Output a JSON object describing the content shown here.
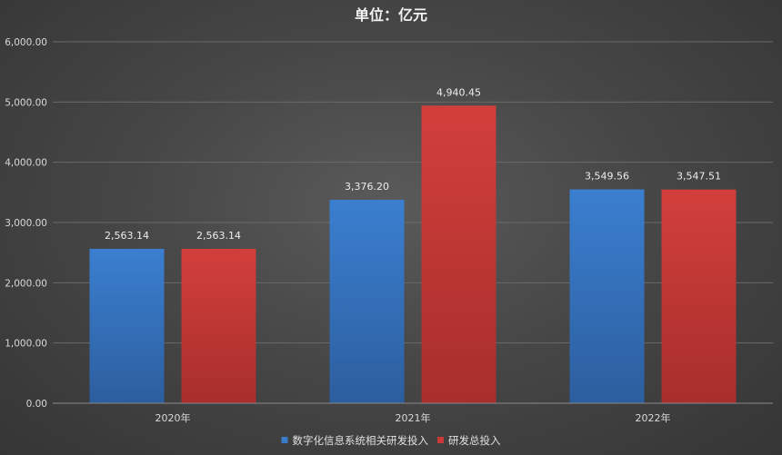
{
  "chart_data": {
    "type": "bar",
    "title": "单位：亿元",
    "categories": [
      "2020年",
      "2021年",
      "2022年"
    ],
    "series": [
      {
        "name": "数字化信息系统相关研发投入",
        "values": [
          2563.14,
          3376.2,
          3549.56
        ],
        "color": "#3a7cc9"
      },
      {
        "name": "研发总投入",
        "values": [
          2563.14,
          4940.45,
          3547.51
        ],
        "color": "#cc3a37"
      }
    ],
    "value_labels": [
      [
        "2,563.14",
        "3,376.20",
        "3,549.56"
      ],
      [
        "2,563.14",
        "4,940.45",
        "3,547.51"
      ]
    ],
    "yticks": [
      "0.00",
      "1,000.00",
      "2,000.00",
      "3,000.00",
      "4,000.00",
      "5,000.00",
      "6,000.00"
    ],
    "ylim": [
      0,
      6000
    ],
    "grid": true,
    "legend_position": "bottom",
    "xlabel": "",
    "ylabel": ""
  }
}
